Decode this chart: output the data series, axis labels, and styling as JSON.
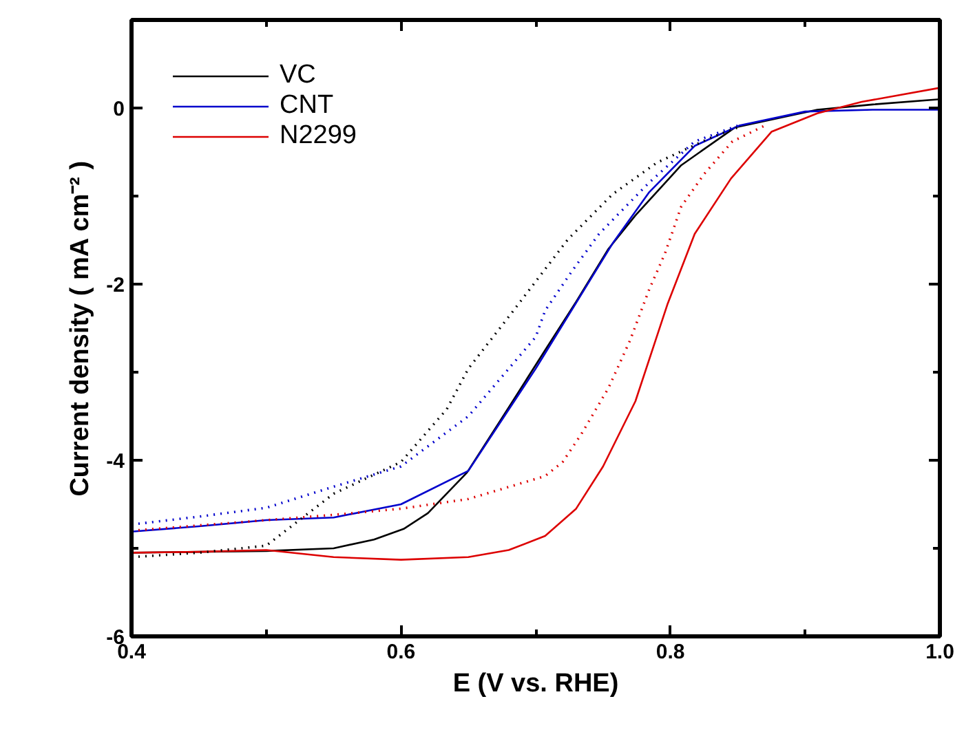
{
  "chart_data": {
    "type": "line",
    "xlabel": "E (V vs. RHE)",
    "ylabel": "Current density ( mA cm⁻² )",
    "xlim": [
      0.4,
      1.0
    ],
    "ylim": [
      -6,
      1
    ],
    "xticks": [
      0.4,
      {
        "value": 0.5,
        "label": null
      },
      0.6,
      {
        "value": 0.7,
        "label": null
      },
      0.8,
      {
        "value": 0.9,
        "label": null
      },
      {
        "value": 1.0,
        "label": "1.0"
      }
    ],
    "yticks": [
      -6,
      {
        "value": -5,
        "label": null
      },
      -4,
      {
        "value": -3,
        "label": null
      },
      -2,
      {
        "value": -1,
        "label": null
      },
      0,
      {
        "value": 1,
        "label": null
      }
    ],
    "legend": "top left",
    "series": [
      {
        "name": "VC",
        "color": "#000000",
        "line_style": "solid",
        "x": [
          0.4,
          0.45,
          0.5,
          0.55,
          0.58,
          0.602,
          0.62,
          0.649,
          0.68,
          0.707,
          0.73,
          0.754,
          0.774,
          0.808,
          0.848,
          0.909,
          0.95,
          1.0
        ],
        "values": [
          -5.05,
          -5.04,
          -5.03,
          -5.0,
          -4.9,
          -4.78,
          -4.6,
          -4.14,
          -3.4,
          -2.75,
          -2.2,
          -1.6,
          -1.22,
          -0.65,
          -0.22,
          -0.02,
          0.04,
          0.1
        ]
      },
      {
        "name": "CNT",
        "color": "#0000cc",
        "line_style": "solid",
        "x": [
          0.4,
          0.45,
          0.5,
          0.55,
          0.6,
          0.65,
          0.7,
          0.757,
          0.784,
          0.818,
          0.851,
          0.9,
          0.95,
          1.0
        ],
        "values": [
          -4.81,
          -4.75,
          -4.68,
          -4.65,
          -4.5,
          -4.12,
          -2.96,
          -1.54,
          -0.96,
          -0.43,
          -0.2,
          -0.04,
          -0.02,
          -0.02
        ]
      },
      {
        "name": "N2299",
        "color": "#dd0000",
        "line_style": "solid",
        "x": [
          0.4,
          0.45,
          0.5,
          0.55,
          0.6,
          0.65,
          0.68,
          0.707,
          0.73,
          0.75,
          0.774,
          0.798,
          0.818,
          0.845,
          0.875,
          0.909,
          0.942,
          1.0
        ],
        "values": [
          -5.05,
          -5.04,
          -5.02,
          -5.1,
          -5.13,
          -5.1,
          -5.02,
          -4.86,
          -4.55,
          -4.07,
          -3.33,
          -2.22,
          -1.43,
          -0.8,
          -0.27,
          -0.06,
          0.07,
          0.23
        ]
      },
      {
        "color": "#000000",
        "line_style": "dotted",
        "x": [
          0.4,
          0.45,
          0.5,
          0.55,
          0.6,
          0.634,
          0.65,
          0.679,
          0.707,
          0.724,
          0.757,
          0.79,
          0.831,
          0.85
        ],
        "values": [
          -5.1,
          -5.05,
          -4.97,
          -4.38,
          -4.02,
          -3.42,
          -2.96,
          -2.39,
          -1.83,
          -1.49,
          -0.98,
          -0.62,
          -0.33,
          -0.22
        ]
      },
      {
        "color": "#0000cc",
        "line_style": "dotted",
        "x": [
          0.4,
          0.45,
          0.5,
          0.55,
          0.6,
          0.65,
          0.7,
          0.707,
          0.727,
          0.747,
          0.784,
          0.818,
          0.85
        ],
        "values": [
          -4.73,
          -4.64,
          -4.54,
          -4.3,
          -4.07,
          -3.5,
          -2.6,
          -2.3,
          -1.85,
          -1.43,
          -0.85,
          -0.38,
          -0.2
        ]
      },
      {
        "color": "#dd0000",
        "line_style": "dotted",
        "x": [
          0.4,
          0.45,
          0.5,
          0.55,
          0.6,
          0.65,
          0.707,
          0.72,
          0.734,
          0.754,
          0.77,
          0.784,
          0.796,
          0.808,
          0.825,
          0.846,
          0.87
        ],
        "values": [
          -4.8,
          -4.74,
          -4.68,
          -4.62,
          -4.55,
          -4.44,
          -4.18,
          -4.02,
          -3.7,
          -3.18,
          -2.64,
          -2.07,
          -1.65,
          -1.12,
          -0.75,
          -0.38,
          -0.2
        ]
      }
    ]
  }
}
